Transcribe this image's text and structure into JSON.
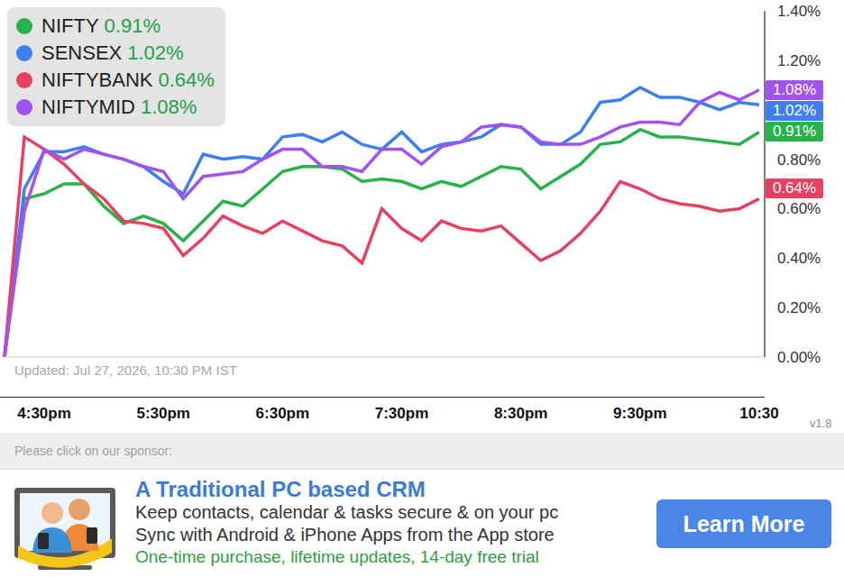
{
  "chart_data": {
    "type": "line",
    "categories": [
      null,
      null,
      "4:30pm",
      null,
      null,
      null,
      null,
      null,
      "5:30pm",
      null,
      null,
      null,
      null,
      null,
      "6:30pm",
      null,
      null,
      null,
      null,
      null,
      "7:30pm",
      null,
      null,
      null,
      null,
      null,
      "8:30pm",
      null,
      null,
      null,
      null,
      null,
      "9:30pm",
      null,
      null,
      null,
      null,
      null,
      "10:30"
    ],
    "series": [
      {
        "name": "NIFTY",
        "color": "#27b24a",
        "values": [
          0,
          0.64,
          0.66,
          0.7,
          0.7,
          0.61,
          0.54,
          0.57,
          0.54,
          0.47,
          0.55,
          0.63,
          0.61,
          0.68,
          0.75,
          0.77,
          0.77,
          0.76,
          0.71,
          0.72,
          0.71,
          0.68,
          0.71,
          0.69,
          0.73,
          0.77,
          0.76,
          0.68,
          0.73,
          0.78,
          0.86,
          0.87,
          0.92,
          0.89,
          0.89,
          0.88,
          0.87,
          0.86,
          0.91
        ],
        "value_labels": [
          null,
          null,
          null,
          null,
          null,
          null,
          null,
          null,
          null,
          null,
          null,
          null,
          null,
          null,
          null,
          null,
          null,
          null,
          null,
          null,
          null,
          null,
          null,
          null,
          null,
          null,
          null,
          null,
          null,
          null,
          null,
          null,
          null,
          null,
          null,
          null,
          null,
          null,
          "0.91%"
        ]
      },
      {
        "name": "SENSEX",
        "color": "#3d7ff0",
        "values": [
          0,
          0.68,
          0.83,
          0.83,
          0.85,
          0.82,
          0.8,
          0.77,
          0.71,
          0.66,
          0.82,
          0.8,
          0.81,
          0.8,
          0.89,
          0.9,
          0.87,
          0.91,
          0.86,
          0.84,
          0.91,
          0.83,
          0.86,
          0.87,
          0.89,
          0.94,
          0.93,
          0.86,
          0.86,
          0.91,
          1.03,
          1.04,
          1.09,
          1.05,
          1.05,
          1.03,
          1.0,
          1.03,
          1.02
        ],
        "value_labels": [
          null,
          null,
          null,
          null,
          null,
          null,
          null,
          null,
          null,
          null,
          null,
          null,
          null,
          null,
          null,
          null,
          null,
          null,
          null,
          null,
          null,
          null,
          null,
          null,
          null,
          null,
          null,
          null,
          null,
          null,
          null,
          null,
          null,
          null,
          null,
          null,
          null,
          null,
          "1.02%"
        ]
      },
      {
        "name": "NIFTYBANK",
        "color": "#e8405f",
        "values": [
          0,
          0.89,
          0.84,
          0.78,
          0.7,
          0.64,
          0.55,
          0.54,
          0.52,
          0.41,
          0.48,
          0.57,
          0.53,
          0.5,
          0.55,
          0.51,
          0.47,
          0.45,
          0.38,
          0.6,
          0.52,
          0.47,
          0.55,
          0.52,
          0.51,
          0.53,
          0.46,
          0.39,
          0.43,
          0.5,
          0.59,
          0.71,
          0.68,
          0.64,
          0.62,
          0.61,
          0.59,
          0.6,
          0.64
        ],
        "value_labels": [
          null,
          null,
          null,
          null,
          null,
          null,
          null,
          null,
          null,
          null,
          null,
          null,
          null,
          null,
          null,
          null,
          null,
          null,
          null,
          null,
          null,
          null,
          null,
          null,
          null,
          null,
          null,
          null,
          null,
          null,
          null,
          null,
          null,
          null,
          null,
          null,
          null,
          null,
          "0.64%"
        ]
      },
      {
        "name": "NIFTYMID",
        "color": "#a251f2",
        "values": [
          0,
          0.59,
          0.84,
          0.8,
          0.84,
          0.82,
          0.8,
          0.77,
          0.75,
          0.64,
          0.73,
          0.74,
          0.75,
          0.8,
          0.84,
          0.84,
          0.77,
          0.77,
          0.75,
          0.84,
          0.84,
          0.78,
          0.85,
          0.87,
          0.93,
          0.94,
          0.93,
          0.87,
          0.86,
          0.86,
          0.89,
          0.93,
          0.95,
          0.95,
          0.94,
          1.03,
          1.07,
          1.04,
          1.08
        ],
        "value_labels": [
          null,
          null,
          null,
          null,
          null,
          null,
          null,
          null,
          null,
          null,
          null,
          null,
          null,
          null,
          null,
          null,
          null,
          null,
          null,
          null,
          null,
          null,
          null,
          null,
          null,
          null,
          null,
          null,
          null,
          null,
          null,
          null,
          null,
          null,
          null,
          null,
          null,
          null,
          "1.08%"
        ]
      }
    ],
    "ylim": [
      0,
      1.4
    ],
    "yticks": [
      {
        "value": 0,
        "label": "0.00%"
      },
      {
        "value": 0.2,
        "label": "0.20%"
      },
      {
        "value": 0.4,
        "label": "0.40%"
      },
      {
        "value": 0.6,
        "label": "0.60%"
      },
      {
        "value": 0.8,
        "label": "0.80%"
      },
      {
        "value": 1.2,
        "label": "1.20%"
      },
      {
        "value": 1.4,
        "label": "1.40%"
      }
    ],
    "grid": false,
    "legend": "top-left",
    "annotation": "Updated: Jul 27, 2026, 10:30 PM IST"
  },
  "version": "v1.8",
  "sponsor": {
    "prompt": "Please click on our sponsor:",
    "title": "A Traditional PC based CRM",
    "lines": [
      "Keep contacts, calendar & tasks secure & on your pc",
      "Sync with Android & iPhone Apps from the App store"
    ],
    "offer": "One-time purchase, lifetime updates, 14-day free trial",
    "button": "Learn More"
  }
}
